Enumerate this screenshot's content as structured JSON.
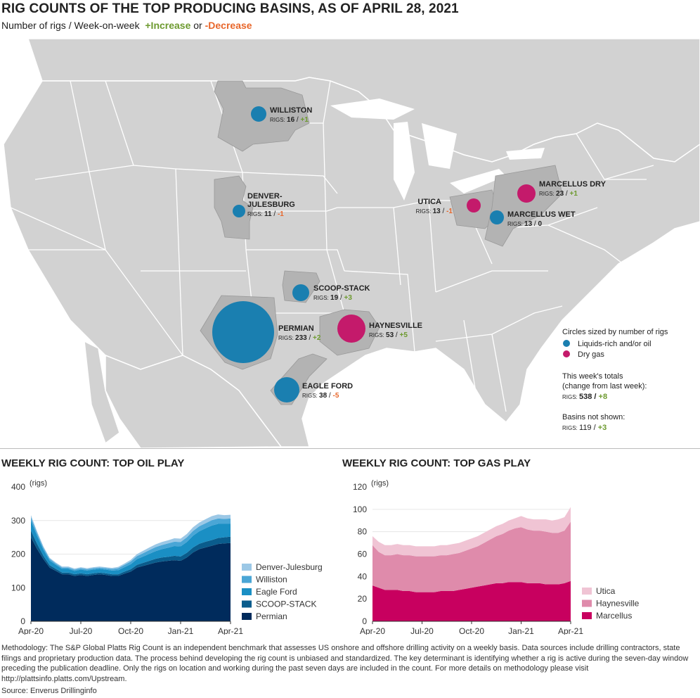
{
  "header": {
    "title": "RIG COUNTS OF THE TOP PRODUCING BASINS, AS OF APRIL 28, 2021",
    "subtitle_main": "Number of rigs / Week-on-week",
    "subtitle_increase": "+Increase",
    "subtitle_or": "or",
    "subtitle_decrease": "-Decrease"
  },
  "map": {
    "basins": [
      {
        "id": "williston",
        "name": "WILLISTON",
        "rigs_label": "RIGS:",
        "rigs": "16",
        "change": "+1",
        "type": "oil"
      },
      {
        "id": "denver",
        "name1": "DENVER-",
        "name2": "JULESBURG",
        "rigs_label": "RIGS:",
        "rigs": "11",
        "change": "-1",
        "type": "oil"
      },
      {
        "id": "scoop",
        "name": "SCOOP-STACK",
        "rigs_label": "RIGS:",
        "rigs": "19",
        "change": "+3",
        "type": "oil"
      },
      {
        "id": "permian",
        "name": "PERMIAN",
        "rigs_label": "RIGS:",
        "rigs": "233",
        "change": "+2",
        "type": "oil"
      },
      {
        "id": "haynesville",
        "name": "HAYNESVILLE",
        "rigs_label": "RIGS:",
        "rigs": "53",
        "change": "+5",
        "type": "gas"
      },
      {
        "id": "eagleford",
        "name": "EAGLE FORD",
        "rigs_label": "RIGS:",
        "rigs": "38",
        "change": "-5",
        "type": "oil"
      },
      {
        "id": "utica",
        "name": "UTICA",
        "rigs_label": "RIGS:",
        "rigs": "13",
        "change": "-1",
        "type": "gas"
      },
      {
        "id": "marcdry",
        "name": "MARCELLUS DRY",
        "rigs_label": "RIGS:",
        "rigs": "23",
        "change": "+1",
        "type": "gas"
      },
      {
        "id": "marcwet",
        "name": "MARCELLUS WET",
        "rigs_label": "RIGS:",
        "rigs": "13",
        "change": "0",
        "type": "oil"
      }
    ],
    "legend": {
      "heading": "Circles sized by number of rigs",
      "oil_label": "Liquids-rich and/or oil",
      "gas_label": "Dry gas",
      "totals_line1": "This week's totals",
      "totals_line2": "(change from last week):",
      "totals_rigs_label": "RIGS:",
      "totals_rigs": "538",
      "totals_change": "+8",
      "notshown_heading": "Basins not shown:",
      "notshown_rigs_label": "RIGS:",
      "notshown_rigs": "119",
      "notshown_change": "+3"
    },
    "colors": {
      "oil": "#1a7fb0",
      "gas": "#c41a6b",
      "land": "#d2d2d2",
      "basin": "#b3b3b3",
      "border": "#ffffff",
      "increase": "#6d9a2f",
      "decrease": "#e8672b"
    }
  },
  "chart_data": [
    {
      "type": "area",
      "title": "WEEKLY RIG COUNT: TOP OIL PLAY",
      "ylabel": "(rigs)",
      "ylim": [
        0,
        400
      ],
      "yticks": [
        0,
        100,
        200,
        300,
        400
      ],
      "xticks": [
        "Apr-20",
        "Jul-20",
        "Oct-20",
        "Jan-21",
        "Apr-21"
      ],
      "stacked": true,
      "series": [
        {
          "name": "Permian",
          "color": "#002b5c",
          "values": [
            250,
            215,
            185,
            160,
            150,
            140,
            140,
            135,
            138,
            135,
            138,
            140,
            138,
            135,
            135,
            142,
            148,
            160,
            165,
            170,
            175,
            178,
            180,
            182,
            180,
            190,
            205,
            215,
            220,
            225,
            230,
            232,
            233
          ]
        },
        {
          "name": "SCOOP-STACK",
          "color": "#0a5c8c",
          "values": [
            20,
            15,
            10,
            7,
            6,
            5,
            5,
            5,
            5,
            5,
            5,
            5,
            5,
            5,
            5,
            6,
            7,
            8,
            9,
            10,
            11,
            12,
            12,
            13,
            13,
            14,
            15,
            16,
            17,
            17,
            18,
            18,
            19
          ]
        },
        {
          "name": "Eagle Ford",
          "color": "#1a8fc4",
          "values": [
            30,
            24,
            18,
            14,
            12,
            11,
            11,
            10,
            11,
            11,
            11,
            11,
            11,
            11,
            12,
            13,
            15,
            17,
            19,
            21,
            23,
            25,
            27,
            29,
            30,
            32,
            35,
            37,
            40,
            43,
            42,
            40,
            38
          ]
        },
        {
          "name": "Williston",
          "color": "#4aa6d6",
          "values": [
            10,
            8,
            6,
            5,
            4,
            4,
            4,
            4,
            4,
            4,
            4,
            4,
            4,
            5,
            6,
            7,
            8,
            9,
            10,
            11,
            12,
            12,
            13,
            13,
            13,
            14,
            14,
            15,
            15,
            16,
            16,
            15,
            16
          ]
        },
        {
          "name": "Denver-Julesburg",
          "color": "#9cc8e6",
          "values": [
            6,
            5,
            4,
            3,
            3,
            3,
            3,
            3,
            3,
            3,
            3,
            3,
            3,
            3,
            4,
            4,
            5,
            6,
            7,
            8,
            8,
            9,
            9,
            10,
            10,
            10,
            11,
            11,
            12,
            12,
            12,
            11,
            11
          ]
        }
      ]
    },
    {
      "type": "area",
      "title": "WEEKLY RIG COUNT: TOP GAS PLAY",
      "ylabel": "(rigs)",
      "ylim": [
        0,
        120
      ],
      "yticks": [
        0,
        20,
        40,
        60,
        80,
        100,
        120
      ],
      "xticks": [
        "Apr-20",
        "Jul-20",
        "Oct-20",
        "Jan-21",
        "Apr-21"
      ],
      "stacked": true,
      "series": [
        {
          "name": "Marcellus",
          "color": "#c8005f",
          "values": [
            32,
            30,
            28,
            28,
            28,
            27,
            27,
            26,
            26,
            26,
            26,
            27,
            27,
            27,
            28,
            29,
            30,
            31,
            32,
            33,
            34,
            34,
            35,
            35,
            35,
            34,
            34,
            34,
            33,
            33,
            33,
            34,
            36
          ]
        },
        {
          "name": "Haynesville",
          "color": "#df8bab",
          "values": [
            36,
            32,
            31,
            31,
            32,
            32,
            32,
            32,
            32,
            32,
            32,
            32,
            32,
            33,
            33,
            34,
            35,
            36,
            38,
            40,
            42,
            44,
            46,
            48,
            49,
            48,
            47,
            47,
            47,
            46,
            46,
            47,
            53
          ]
        },
        {
          "name": "Utica",
          "color": "#f0c4d4",
          "values": [
            8,
            9,
            9,
            9,
            9,
            9,
            9,
            9,
            9,
            9,
            9,
            9,
            9,
            9,
            9,
            9,
            9,
            9,
            9,
            9,
            9,
            9,
            9,
            9,
            10,
            10,
            10,
            10,
            11,
            11,
            12,
            12,
            13
          ]
        }
      ]
    }
  ],
  "footer": {
    "methodology": "Methodology: The S&P Global Platts Rig Count is an independent benchmark that assesses US onshore and offshore drilling activity on a weekly basis. Data sources include drilling contractors, state filings and proprietary production data. The process behind developing the rig count is unbiased and standardized. The key determinant is identifying whether a rig is active during the seven-day window preceding the publication deadline. Only the rigs on location and working during the past seven days are included in the count. For more details on methodology please visit http://plattsinfo.platts.com/Upstream.",
    "source": "Source: Enverus Drillinginfo"
  }
}
